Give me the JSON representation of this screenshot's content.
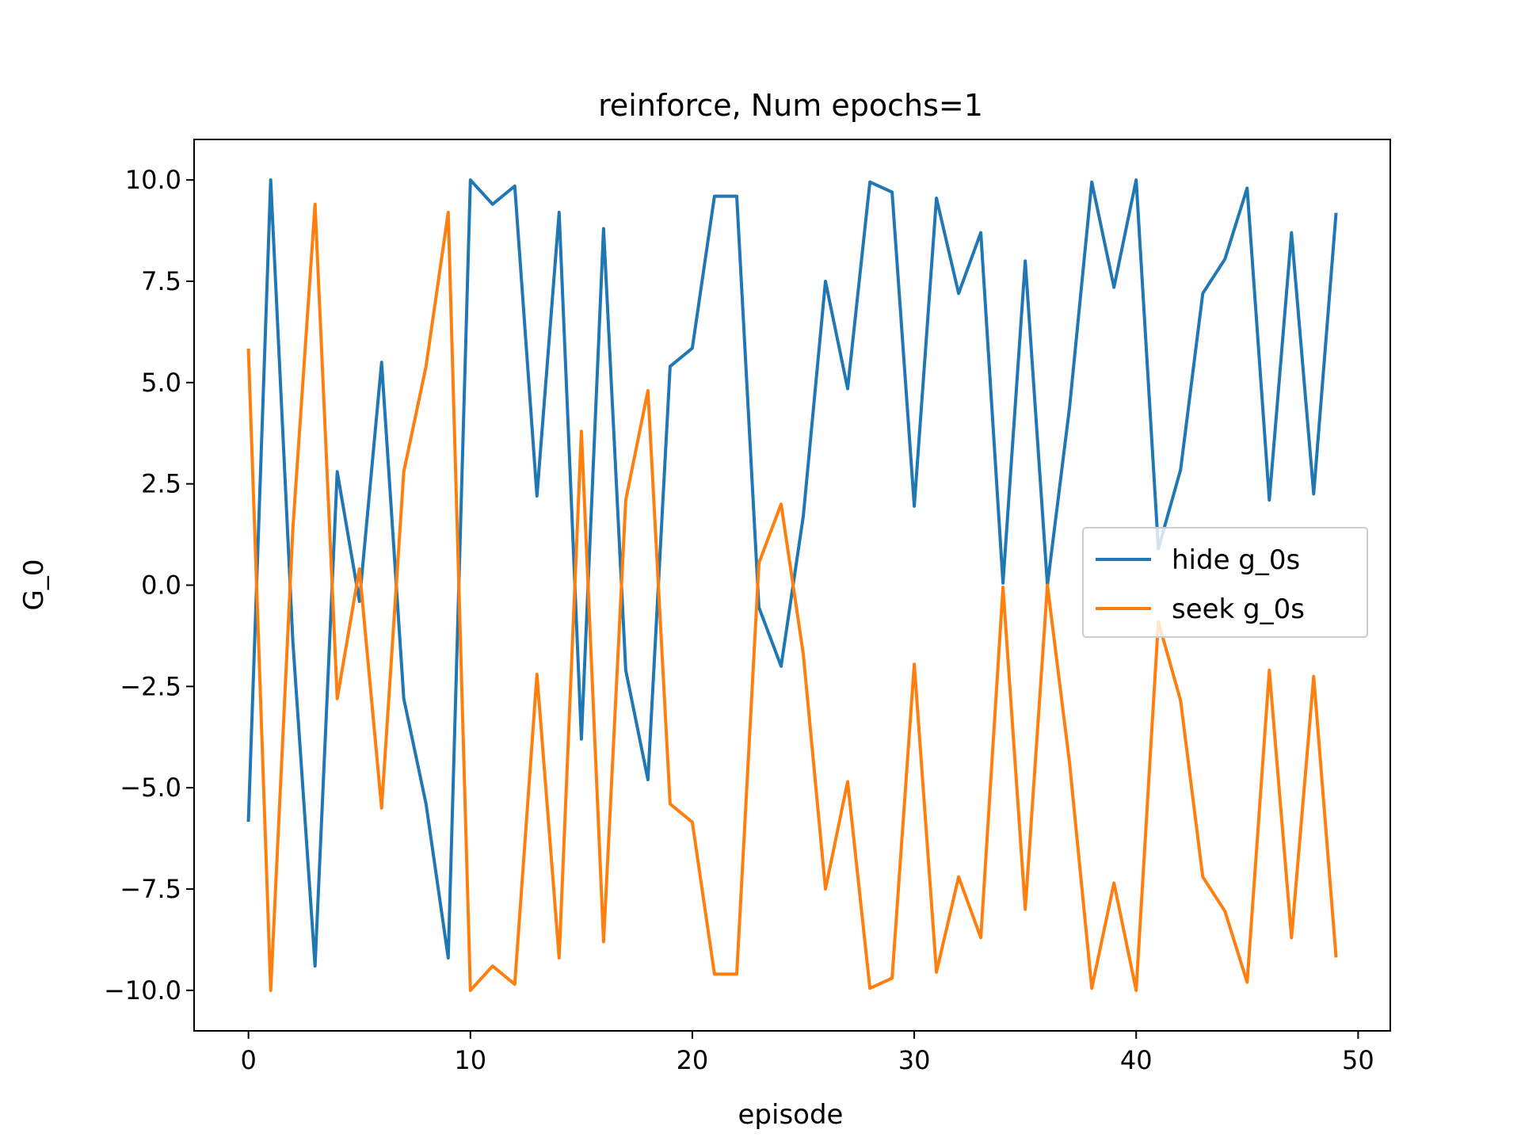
{
  "chart_data": {
    "type": "line",
    "title": "reinforce, Num epochs=1",
    "xlabel": "episode",
    "ylabel": "G_0",
    "xlim": [
      -2.45,
      51.45
    ],
    "ylim": [
      -11.0,
      11.0
    ],
    "x_ticks": [
      0,
      10,
      20,
      30,
      40,
      50
    ],
    "x_tick_labels": [
      "0",
      "10",
      "20",
      "30",
      "40",
      "50"
    ],
    "y_ticks": [
      10.0,
      7.5,
      5.0,
      2.5,
      0.0,
      -2.5,
      -5.0,
      -7.5,
      -10.0
    ],
    "y_tick_labels": [
      "10.0",
      "7.5",
      "5.0",
      "2.5",
      "0.0",
      "−2.5",
      "−5.0",
      "−7.5",
      "−10.0"
    ],
    "grid": false,
    "legend_position": "center-right",
    "x": [
      0,
      1,
      2,
      3,
      4,
      5,
      6,
      7,
      8,
      9,
      10,
      11,
      12,
      13,
      14,
      15,
      16,
      17,
      18,
      19,
      20,
      21,
      22,
      23,
      24,
      25,
      26,
      27,
      28,
      29,
      30,
      31,
      32,
      33,
      34,
      35,
      36,
      37,
      38,
      39,
      40,
      41,
      42,
      43,
      44,
      45,
      46,
      47,
      48,
      49
    ],
    "series": [
      {
        "name": "hide g_0s",
        "color": "#1f77b4",
        "values": [
          -5.8,
          10.0,
          -1.4,
          -9.4,
          2.8,
          -0.4,
          5.5,
          -2.8,
          -5.4,
          -9.2,
          10.0,
          9.4,
          9.85,
          2.2,
          9.2,
          -3.8,
          8.8,
          -2.1,
          -4.8,
          5.4,
          5.85,
          9.6,
          9.6,
          -0.55,
          -2.0,
          1.7,
          7.5,
          4.85,
          9.95,
          9.7,
          1.95,
          9.55,
          7.2,
          8.7,
          0.05,
          8.0,
          0.0,
          4.4,
          9.95,
          7.35,
          10.0,
          0.9,
          2.85,
          7.2,
          8.05,
          9.8,
          2.1,
          8.7,
          2.25,
          9.15
        ]
      },
      {
        "name": "seek g_0s",
        "color": "#ff7f0e",
        "values": [
          5.8,
          -10.0,
          1.4,
          9.4,
          -2.8,
          0.4,
          -5.5,
          2.8,
          5.4,
          9.2,
          -10.0,
          -9.4,
          -9.85,
          -2.2,
          -9.2,
          3.8,
          -8.8,
          2.1,
          4.8,
          -5.4,
          -5.85,
          -9.6,
          -9.6,
          0.55,
          2.0,
          -1.7,
          -7.5,
          -4.85,
          -9.95,
          -9.7,
          -1.95,
          -9.55,
          -7.2,
          -8.7,
          -0.05,
          -8.0,
          0.0,
          -4.4,
          -9.95,
          -7.35,
          -10.0,
          -0.9,
          -2.85,
          -7.2,
          -8.05,
          -9.8,
          -2.1,
          -8.7,
          -2.25,
          -9.15
        ]
      }
    ]
  }
}
